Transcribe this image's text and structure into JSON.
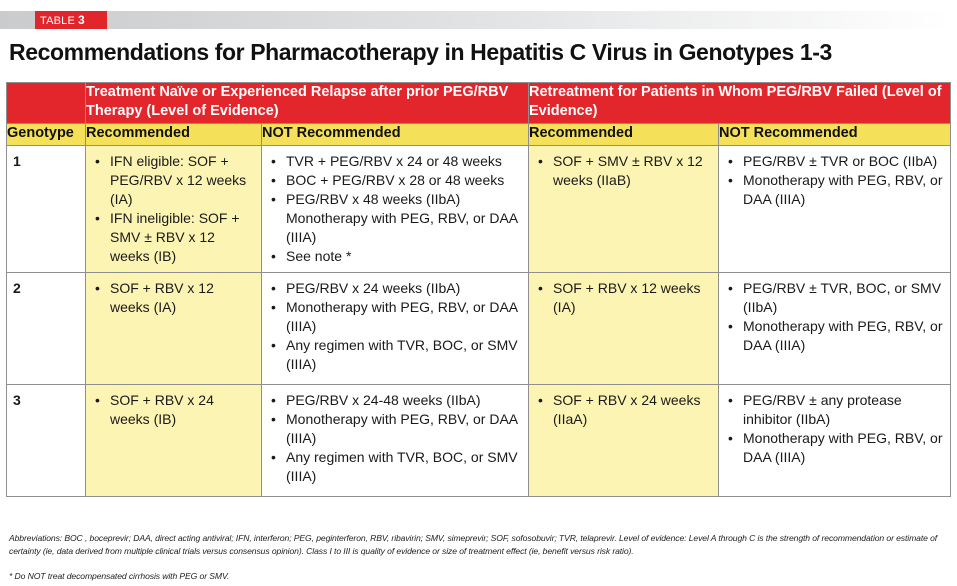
{
  "tag": {
    "prefix": "TABLE",
    "number": "3"
  },
  "title": "Recommendations for Pharmacotherapy in Hepatitis C Virus in Genotypes 1-3",
  "header": {
    "group_naive": "Treatment Naïve or Experienced Relapse after prior PEG/RBV Therapy (Level of Evidence)",
    "group_retreat": "Retreatment for Patients in Whom PEG/RBV Failed (Level of Evidence)",
    "col_genotype": "Genotype",
    "col_rec_1": "Recommended",
    "col_notrec_1": "NOT Recommended",
    "col_rec_2": "Recommended",
    "col_notrec_2": "NOT Recommended"
  },
  "rows": [
    {
      "genotype": "1",
      "rec_naive": [
        "IFN eligible: SOF + PEG/RBV x 12 weeks (IA)",
        "IFN ineligible: SOF + SMV ± RBV x 12 weeks (IB)"
      ],
      "notrec_naive": [
        "TVR + PEG/RBV x 24 or 48 weeks",
        "BOC + PEG/RBV x 28 or 48 weeks",
        "PEG/RBV x 48 weeks (IIbA) Monotherapy with PEG, RBV, or DAA (IIIA)",
        "See note *"
      ],
      "rec_retreat": [
        "SOF + SMV ± RBV x 12 weeks (IIaB)"
      ],
      "notrec_retreat": [
        "PEG/RBV ± TVR or BOC (IIbA)",
        "Monotherapy with PEG, RBV, or DAA (IIIA)"
      ]
    },
    {
      "genotype": "2",
      "rec_naive": [
        "SOF + RBV x 12 weeks (IA)"
      ],
      "notrec_naive": [
        "PEG/RBV x 24 weeks (IIbA)",
        "Monotherapy with PEG, RBV, or DAA (IIIA)",
        "Any regimen with TVR, BOC, or SMV (IIIA)"
      ],
      "rec_retreat": [
        "SOF + RBV x 12 weeks (IA)"
      ],
      "notrec_retreat": [
        "PEG/RBV ± TVR, BOC, or SMV (IIbA)",
        "Monotherapy with PEG, RBV, or DAA (IIIA)"
      ]
    },
    {
      "genotype": "3",
      "rec_naive": [
        "SOF + RBV x 24 weeks (IB)"
      ],
      "notrec_naive": [
        "PEG/RBV x 24-48 weeks (IIbA)",
        "Monotherapy with PEG, RBV, or DAA (IIIA)",
        "Any regimen with TVR, BOC, or SMV (IIIA)"
      ],
      "rec_retreat": [
        "SOF + RBV x 24 weeks (IIaA)"
      ],
      "notrec_retreat": [
        "PEG/RBV ± any protease inhibitor (IIbA)",
        "Monotherapy with PEG, RBV, or DAA (IIIA)"
      ]
    }
  ],
  "footnotes": {
    "abbreviations": "Abbreviations: BOC , boceprevir; DAA, direct acting antiviral; IFN, interferon; PEG, peginterferon, RBV, ribavirin; SMV, simeprevir; SOF, sofosobuvir; TVR, telaprevir. Level of evidence: Level A through C is the strength of recommendation or estimate of certainty (ie, data derived from multiple clinical trials versus consensus opinion). Class I to III is quality of evidence or size of treatment effect (ie, benefit versus risk ratio).",
    "note": "* Do NOT treat decompensated cirrhosis with PEG or SMV."
  },
  "colors": {
    "red": "#e2262c",
    "yellow_header": "#f5e05a",
    "yellow_cell": "#fcf4b2"
  }
}
